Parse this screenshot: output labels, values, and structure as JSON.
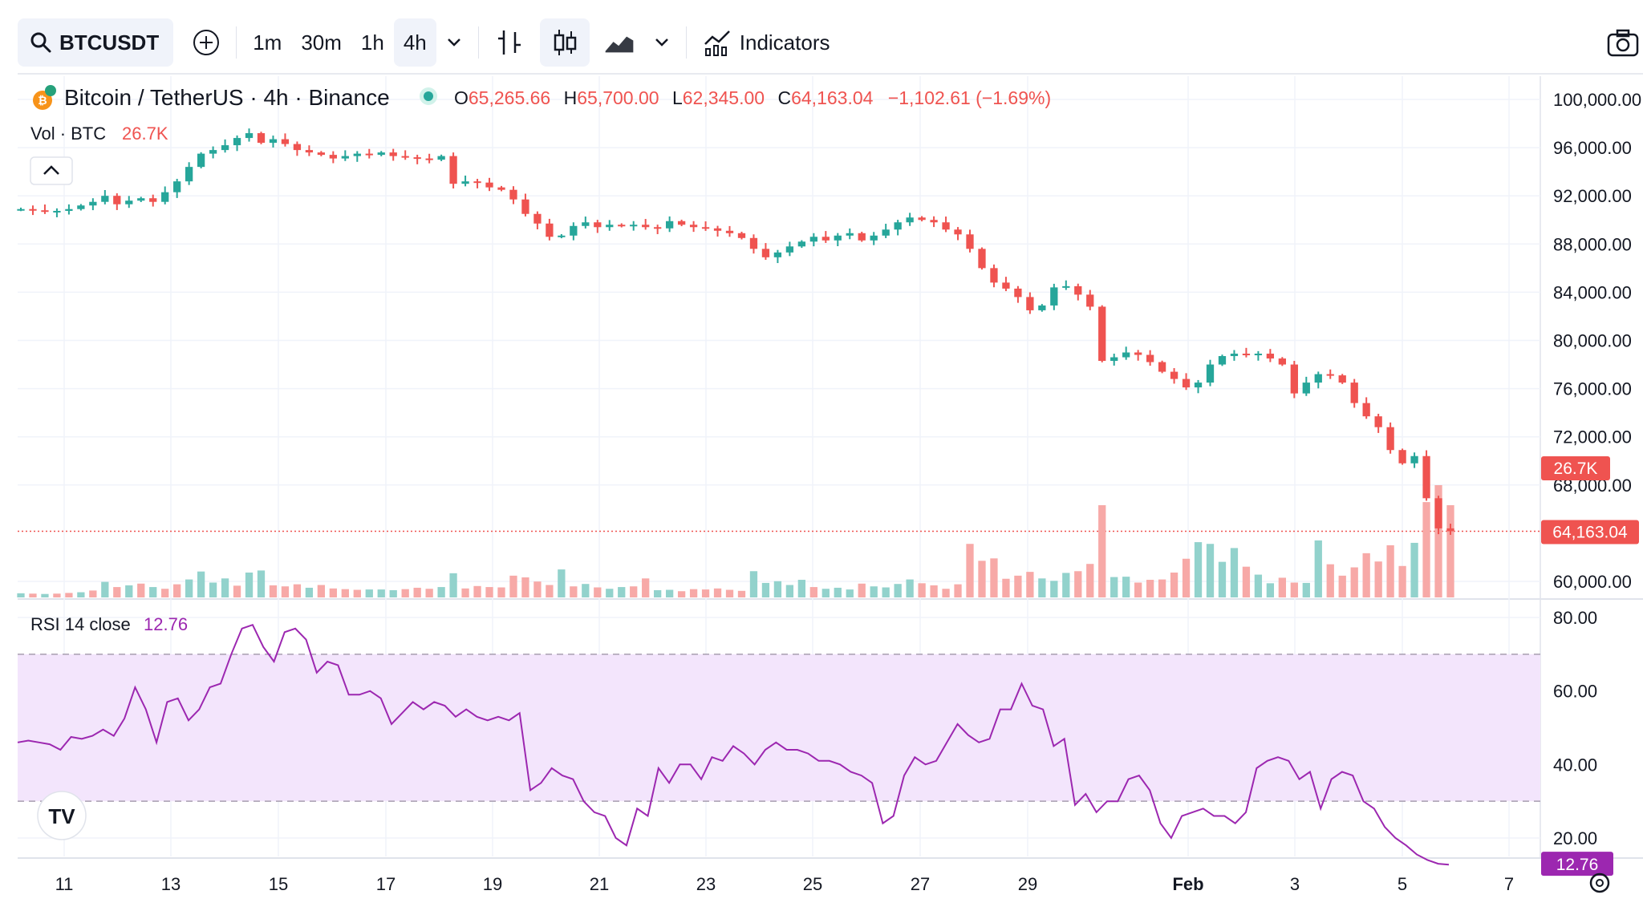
{
  "toolbar": {
    "symbol": "BTCUSDT",
    "intervals": [
      "1m",
      "30m",
      "1h",
      "4h"
    ],
    "active_interval": "4h",
    "indicators_label": "Indicators"
  },
  "legend": {
    "title": "Bitcoin / TetherUS · 4h · Binance",
    "open_label": "O",
    "open": "65,265.66",
    "high_label": "H",
    "high": "65,700.00",
    "low_label": "L",
    "low": "62,345.00",
    "close_label": "C",
    "close": "64,163.04",
    "change": "−1,102.61 (−1.69%)",
    "volume_label": "Vol · BTC",
    "volume_value": "26.7K",
    "rsi_label": "RSI 14 close",
    "rsi_value": "12.76"
  },
  "colors": {
    "up": "#26a69a",
    "down": "#ef5350",
    "up_volume": "#92d2cc",
    "down_volume": "#f7a9a7",
    "rsi_line": "#9c27b0",
    "rsi_band": "#f3e5fc",
    "grid": "#f0f3fa",
    "axis_text": "#131722"
  },
  "chart_data": [
    {
      "type": "candlestick",
      "title": "Bitcoin / TetherUS · 4h · Binance",
      "x_ticks": [
        "11",
        "13",
        "15",
        "17",
        "19",
        "21",
        "23",
        "25",
        "27",
        "29",
        "Feb",
        "3",
        "5",
        "7"
      ],
      "y_ticks": [
        "100,000.00",
        "96,000.00",
        "92,000.00",
        "88,000.00",
        "84,000.00",
        "80,000.00",
        "76,000.00",
        "72,000.00",
        "68,000.00",
        "60,000.00"
      ],
      "y_tick_values": [
        100000,
        96000,
        92000,
        88000,
        84000,
        80000,
        76000,
        72000,
        68000,
        60000
      ],
      "ylim": [
        60000,
        100000
      ],
      "last_price_label": "64,163.04",
      "last_price": 64163.04,
      "grid": true,
      "close_series": [
        90900,
        90800,
        90700,
        90750,
        90900,
        91200,
        91500,
        92000,
        91300,
        91600,
        91800,
        91500,
        92300,
        93200,
        94400,
        95500,
        95800,
        96200,
        96800,
        97200,
        96400,
        96700,
        96300,
        95800,
        95600,
        95400,
        95100,
        95300,
        95500,
        95400,
        95600,
        95300,
        95200,
        95100,
        95000,
        95300,
        93000,
        93200,
        93100,
        92700,
        92500,
        91700,
        90500,
        89700,
        88600,
        88700,
        89500,
        89800,
        89400,
        89600,
        89500,
        89600,
        89400,
        89300,
        89900,
        89600,
        89400,
        89300,
        89100,
        88900,
        88500,
        87600,
        86900,
        87300,
        87800,
        88200,
        88600,
        88300,
        88700,
        88900,
        88300,
        88700,
        89200,
        89800,
        90200,
        90000,
        89800,
        89200,
        88800,
        87600,
        86000,
        84800,
        84300,
        83600,
        82500,
        82900,
        84400,
        84500,
        83800,
        82800,
        78300,
        78600,
        79000,
        78800,
        78200,
        77400,
        76800,
        76100,
        76500,
        78000,
        78700,
        78900,
        78800,
        78900,
        78500,
        78000,
        75600,
        76500,
        77200,
        77100,
        76500,
        74800,
        73700,
        72800,
        70900,
        69800,
        70400,
        66900,
        64400,
        64163.04
      ]
    },
    {
      "type": "bar",
      "title": "Vol · BTC",
      "last_value": "26.7K",
      "volume_series": [
        1.2,
        1.1,
        1,
        1.1,
        1.3,
        1.5,
        2,
        4.5,
        3,
        3.5,
        4,
        3,
        2.5,
        3.8,
        5.2,
        7.5,
        4.3,
        5.5,
        3.4,
        7.2,
        7.8,
        3.5,
        3.2,
        3.8,
        2.8,
        3.6,
        2.6,
        2.4,
        2.2,
        2.3,
        2.3,
        2.1,
        2.4,
        2.8,
        2.5,
        3,
        7,
        2.6,
        3.3,
        3,
        2.9,
        6.3,
        5.8,
        4.6,
        3.6,
        8.1,
        3.2,
        3.9,
        2.9,
        2.5,
        3,
        3.2,
        5.5,
        2.1,
        2.2,
        1.8,
        2.4,
        2.3,
        2.6,
        2.2,
        1.9,
        7.6,
        4.2,
        4.7,
        3.6,
        5.1,
        3,
        2.5,
        2.8,
        2.3,
        4,
        3.2,
        2.9,
        3.9,
        5.2,
        4.1,
        3.5,
        2.5,
        3.8,
        15.5,
        10.6,
        11.3,
        5.4,
        6.3,
        7.4,
        5.5,
        4.8,
        7.1,
        7.6,
        9.7,
        26.7,
        5.9,
        6,
        4.3,
        5.1,
        5.2,
        7.2,
        11.2,
        16,
        15.5,
        10.3,
        14.3,
        8.9,
        6.6,
        4.1,
        5.7,
        4.3,
        4.2,
        16.5,
        9.6,
        6.3,
        8.7,
        12.8,
        10.4,
        15.1,
        9.1,
        15.8,
        27.6,
        32.5,
        26.7
      ],
      "volume_colors": [
        "u",
        "d",
        "u",
        "d",
        "d",
        "u",
        "d",
        "u",
        "d",
        "u",
        "d",
        "u",
        "d",
        "d",
        "u",
        "u",
        "u",
        "u",
        "d",
        "u",
        "u",
        "d",
        "d",
        "d",
        "u",
        "d",
        "d",
        "d",
        "d",
        "u",
        "u",
        "u",
        "d",
        "d",
        "d",
        "u",
        "u",
        "d",
        "d",
        "d",
        "d",
        "d",
        "d",
        "d",
        "d",
        "u",
        "d",
        "u",
        "d",
        "u",
        "u",
        "d",
        "d",
        "u",
        "u",
        "d",
        "d",
        "d",
        "d",
        "d",
        "d",
        "u",
        "u",
        "u",
        "u",
        "u",
        "d",
        "u",
        "u",
        "u",
        "d",
        "u",
        "u",
        "u",
        "u",
        "d",
        "d",
        "d",
        "d",
        "d",
        "d",
        "d",
        "d",
        "d",
        "d",
        "u",
        "u",
        "u",
        "d",
        "d",
        "d",
        "u",
        "u",
        "d",
        "d",
        "d",
        "d",
        "d",
        "u",
        "u",
        "u",
        "u",
        "d",
        "u",
        "u",
        "d",
        "d",
        "u",
        "u",
        "d",
        "d",
        "d",
        "d",
        "d",
        "d",
        "d",
        "u",
        "d",
        "d",
        "d"
      ]
    },
    {
      "type": "line",
      "title": "RSI 14 close",
      "last_value_label": "12.76",
      "y_ticks": [
        "80.00",
        "60.00",
        "40.00",
        "20.00"
      ],
      "y_tick_values": [
        80,
        60,
        40,
        20
      ],
      "ylim": [
        12,
        80
      ],
      "band": [
        30,
        70
      ],
      "values": [
        46,
        46.5,
        46,
        45.5,
        44,
        47.5,
        47,
        47.8,
        49.5,
        47.8,
        52.5,
        61,
        55,
        46,
        57,
        58,
        52,
        55,
        61,
        62,
        70,
        77,
        78,
        72,
        68,
        76,
        77,
        74,
        65,
        68,
        67,
        59,
        59,
        60,
        58,
        51,
        54,
        57,
        55,
        57,
        56,
        53,
        55,
        53,
        52,
        53,
        52,
        54,
        33,
        35,
        39,
        37,
        36,
        30,
        27,
        26,
        20,
        18,
        28,
        26,
        39,
        35,
        40,
        40,
        36,
        42,
        41,
        45,
        43,
        40,
        44,
        46,
        44,
        44,
        43,
        41,
        41,
        40,
        38,
        37,
        35,
        24,
        26,
        37,
        42,
        40,
        41,
        46,
        51,
        48,
        46,
        47,
        55,
        55,
        62,
        56,
        55,
        45,
        47,
        29,
        32,
        27,
        30,
        30,
        36,
        37,
        33,
        24,
        20,
        26,
        27,
        28,
        26,
        26,
        24,
        27,
        39,
        41,
        42,
        41,
        36,
        38,
        28,
        36,
        38,
        37,
        30,
        28,
        23,
        20,
        18,
        15.5,
        14,
        13,
        12.76
      ]
    }
  ]
}
